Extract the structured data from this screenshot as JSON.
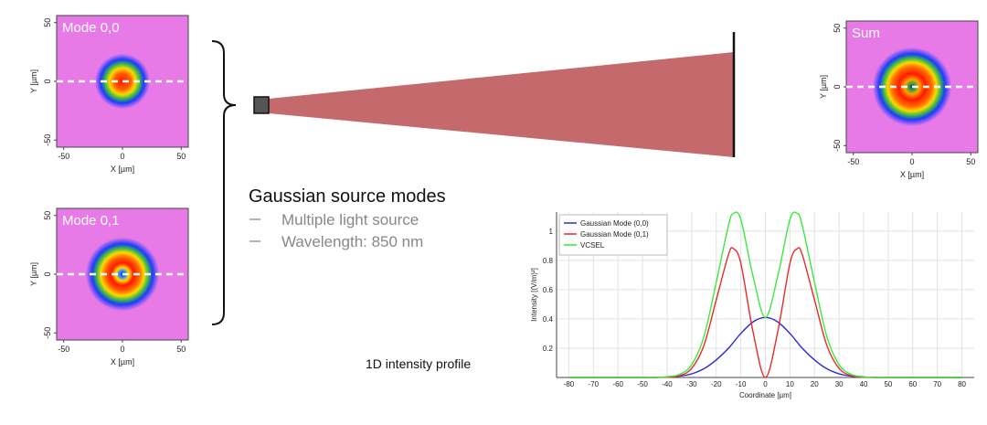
{
  "chart_data": [
    {
      "type": "image",
      "title": "Mode 0,0",
      "xlabel": "X [µm]",
      "ylabel": "Y [µm]",
      "xlim": [
        -56,
        56
      ],
      "ylim": [
        -56,
        56
      ],
      "xticks": [
        -50,
        0,
        50
      ],
      "yticks": [
        50,
        0,
        -50
      ]
    },
    {
      "type": "image",
      "title": "Mode 0,1",
      "xlabel": "X [µm]",
      "ylabel": "Y [µm]",
      "xlim": [
        -56,
        56
      ],
      "ylim": [
        -56,
        56
      ],
      "xticks": [
        -50,
        0,
        50
      ],
      "yticks": [
        50,
        0,
        -50
      ]
    },
    {
      "type": "image",
      "title": "Sum",
      "xlabel": "X [µm]",
      "ylabel": "Y [µm]",
      "xlim": [
        -56,
        56
      ],
      "ylim": [
        -56,
        56
      ],
      "xticks": [
        -50,
        0,
        50
      ],
      "yticks": [
        50,
        0,
        -50
      ]
    },
    {
      "type": "line",
      "xlabel": "Coordinate [µm]",
      "ylabel": "Intensity [(V/m)²]",
      "x": [
        -80,
        -70,
        -60,
        -50,
        -45,
        -40,
        -35,
        -30,
        -25,
        -20,
        -15,
        -13,
        -10,
        -5,
        0,
        5,
        10,
        13,
        15,
        20,
        25,
        30,
        35,
        40,
        45,
        50,
        60,
        70,
        80
      ],
      "series": [
        {
          "name": "Gaussian Mode (0,0)",
          "color": "#2a2ad8",
          "values": [
            0,
            0,
            0,
            0,
            0,
            0.003,
            0.009,
            0.025,
            0.06,
            0.12,
            0.2,
            0.24,
            0.3,
            0.38,
            0.41,
            0.38,
            0.3,
            0.24,
            0.2,
            0.12,
            0.06,
            0.025,
            0.009,
            0.003,
            0,
            0,
            0,
            0,
            0
          ]
        },
        {
          "name": "Gaussian Mode (0,1)",
          "color": "#e82a2a",
          "values": [
            0,
            0,
            0,
            0,
            0,
            0.002,
            0.012,
            0.062,
            0.22,
            0.53,
            0.84,
            0.88,
            0.78,
            0.31,
            0,
            0.31,
            0.78,
            0.88,
            0.84,
            0.53,
            0.22,
            0.062,
            0.012,
            0.002,
            0,
            0,
            0,
            0,
            0
          ]
        },
        {
          "name": "VCSEL",
          "color": "#3ee83e",
          "values": [
            0,
            0,
            0,
            0,
            0,
            0.005,
            0.021,
            0.087,
            0.28,
            0.65,
            1.04,
            1.12,
            1.08,
            0.69,
            0.41,
            0.69,
            1.08,
            1.12,
            1.04,
            0.65,
            0.28,
            0.087,
            0.021,
            0.005,
            0,
            0,
            0,
            0,
            0
          ]
        }
      ],
      "xlim": [
        -85,
        85
      ],
      "ylim": [
        0,
        1.13
      ],
      "xticks": [
        -80,
        -70,
        -60,
        -50,
        -40,
        -30,
        -20,
        -10,
        0,
        10,
        20,
        30,
        40,
        50,
        60,
        70,
        80
      ],
      "yticks": [
        0.2,
        0.4,
        0.6,
        0.8,
        1
      ],
      "grid": true,
      "legend": "upper left"
    }
  ],
  "text": {
    "heading": "Gaussian source modes",
    "bullets": [
      "Multiple light source",
      "Wavelength: 850 nm"
    ],
    "caption": "1D intensity profile"
  }
}
